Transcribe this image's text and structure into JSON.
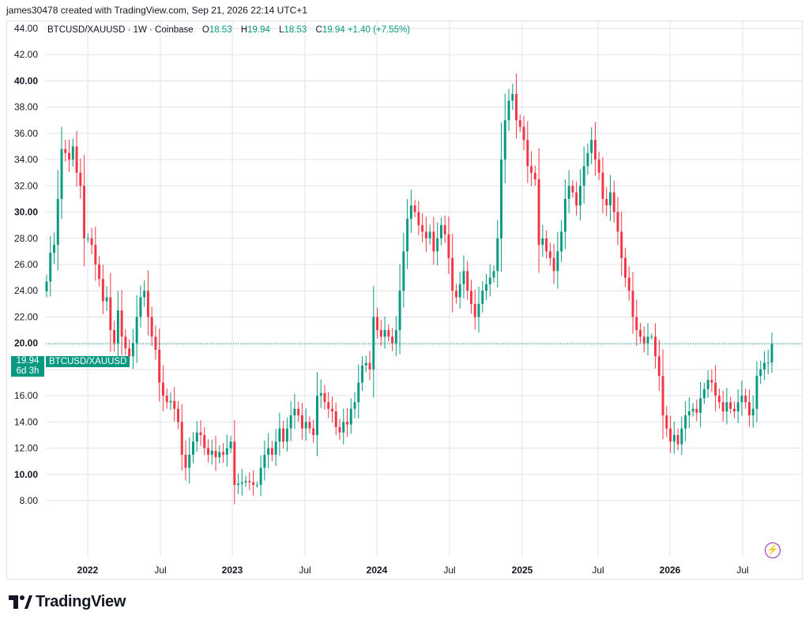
{
  "header": {
    "attribution": "james30478 created with TradingView.com, Sep 21, 2026 22:14 UTC+1"
  },
  "legend": {
    "symbol": "BTCUSD/XAUUSD · 1W · Coinbase",
    "open_label": "O",
    "open_value": "18.53",
    "high_label": "H",
    "high_value": "19.94",
    "low_label": "L",
    "low_value": "18.53",
    "close_label": "C",
    "close_value": "19.94",
    "change": "+1.40 (+7.55%)"
  },
  "last_price": {
    "value": "19.94",
    "countdown": "6d 3h",
    "symbol": "BTCUSD/XAUUSD"
  },
  "footer": {
    "brand": "TradingView"
  },
  "colors": {
    "up": "#089981",
    "down": "#f23645",
    "grid": "#e0e3eb",
    "text": "#131722",
    "accent": "#9c27b0"
  },
  "icons": {
    "logo": "tradingview-logo-icon",
    "bolt": "lightning-bolt-icon"
  },
  "chart_data": {
    "type": "candlestick",
    "title": "BTCUSD/XAUUSD · 1W · Coinbase",
    "xlabel": "",
    "ylabel": "",
    "ylim": [
      7,
      44.5
    ],
    "y_ticks": [
      "8.00",
      "10.00",
      "12.00",
      "14.00",
      "16.00",
      "18.00",
      "20.00",
      "22.00",
      "24.00",
      "26.00",
      "28.00",
      "30.00",
      "32.00",
      "34.00",
      "36.00",
      "38.00",
      "40.00",
      "42.00",
      "44.00"
    ],
    "y_ticks_bold": [
      "10.00",
      "20.00",
      "30.00",
      "40.00"
    ],
    "x_ticks": [
      {
        "label": "2022",
        "bold": true
      },
      {
        "label": "Jul",
        "bold": false
      },
      {
        "label": "2023",
        "bold": true
      },
      {
        "label": "Jul",
        "bold": false
      },
      {
        "label": "2024",
        "bold": true
      },
      {
        "label": "Jul",
        "bold": false
      },
      {
        "label": "2025",
        "bold": true
      },
      {
        "label": "Jul",
        "bold": false
      },
      {
        "label": "2026",
        "bold": true
      },
      {
        "label": "Jul",
        "bold": false
      }
    ],
    "grid": true,
    "last_price_line": 19.94,
    "series_close": [
      24.7,
      26.9,
      27.5,
      31.0,
      34.8,
      34.5,
      34.0,
      35.0,
      33.0,
      32.0,
      28.0,
      28.0,
      27.5,
      26.0,
      24.9,
      23.2,
      23.5,
      21.0,
      20.0,
      22.5,
      20.5,
      19.6,
      19.0,
      20.0,
      22.0,
      23.5,
      24.0,
      22.0,
      20.5,
      19.5,
      17.0,
      16.0,
      15.5,
      15.6,
      15.0,
      14.0,
      11.5,
      10.5,
      11.5,
      12.5,
      13.2,
      13.0,
      12.0,
      11.5,
      11.8,
      11.3,
      11.7,
      11.5,
      12.0,
      12.5,
      9.2,
      9.3,
      9.4,
      9.5,
      9.4,
      9.2,
      9.2,
      10.5,
      11.5,
      12.0,
      11.5,
      12.5,
      13.5,
      12.5,
      13.5,
      14.5,
      15.0,
      14.5,
      13.5,
      14.0,
      13.5,
      13.0,
      16.0,
      16.2,
      15.5,
      15.0,
      14.8,
      13.6,
      13.2,
      14.0,
      13.8,
      15.0,
      15.5,
      17.0,
      18.3,
      18.5,
      18.0,
      22.0,
      21.0,
      20.5,
      21.0,
      20.5,
      20.0,
      21.0,
      24.0,
      27.0,
      29.5,
      30.5,
      30.0,
      29.0,
      28.5,
      28.0,
      28.5,
      27.0,
      28.0,
      29.0,
      28.3,
      26.5,
      24.0,
      23.5,
      24.5,
      25.5,
      24.0,
      23.0,
      22.0,
      23.0,
      24.0,
      24.5,
      25.0,
      25.5,
      28.0,
      34.0,
      37.0,
      38.5,
      39.0,
      37.0,
      36.5,
      35.5,
      33.5,
      33.0,
      32.5,
      27.5,
      28.0,
      27.0,
      26.5,
      25.5,
      27.0,
      28.5,
      31.0,
      32.0,
      31.5,
      30.5,
      32.0,
      33.5,
      34.5,
      35.5,
      34.0,
      33.0,
      31.0,
      30.5,
      31.5,
      30.0,
      28.5,
      26.5,
      25.0,
      24.0,
      22.0,
      21.0,
      20.5,
      20.0,
      20.5,
      20.5,
      19.0,
      17.5,
      14.5,
      13.5,
      12.5,
      13.0,
      12.3,
      13.5,
      14.5,
      14.8,
      15.0,
      14.7,
      15.8,
      16.5,
      17.2,
      17.0,
      16.0,
      15.5,
      14.8,
      15.5,
      15.0,
      14.8,
      15.5,
      16.0,
      15.5,
      14.5,
      15.0,
      17.5,
      18.0,
      18.5,
      18.53,
      19.94
    ]
  }
}
